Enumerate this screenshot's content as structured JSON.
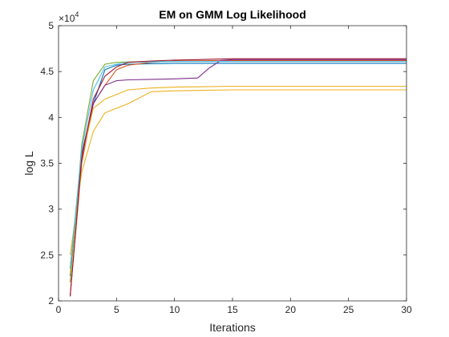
{
  "chart_data": {
    "type": "line",
    "title": "EM on GMM Log Likelihood",
    "xlabel": "Iterations",
    "ylabel": "log L",
    "xlim": [
      0,
      30
    ],
    "ylim": [
      2.0,
      5.0
    ],
    "xticks": [
      "0",
      "5",
      "10",
      "15",
      "20",
      "25",
      "30"
    ],
    "yticks": [
      "2",
      "2.5",
      "3",
      "3.5",
      "4",
      "4.5",
      "5"
    ],
    "y_multiplier_base": "10",
    "y_multiplier_exponent": "4",
    "grid": false,
    "legend": "none",
    "series": [
      {
        "color": "#0072BD",
        "x": [
          1,
          2,
          3,
          4,
          5,
          6,
          8,
          10,
          30
        ],
        "y": [
          2.27,
          3.6,
          4.15,
          4.52,
          4.57,
          4.58,
          4.585,
          4.59,
          4.59
        ]
      },
      {
        "color": "#D95319",
        "x": [
          1,
          2,
          3,
          4,
          5,
          6,
          8,
          10,
          15,
          30
        ],
        "y": [
          2.05,
          3.5,
          4.15,
          4.35,
          4.52,
          4.57,
          4.6,
          4.615,
          4.62,
          4.62
        ]
      },
      {
        "color": "#EDB120",
        "x": [
          1,
          2,
          3,
          4,
          5,
          6,
          8,
          10,
          15,
          30
        ],
        "y": [
          2.5,
          3.4,
          3.85,
          4.05,
          4.1,
          4.15,
          4.28,
          4.29,
          4.3,
          4.3
        ]
      },
      {
        "color": "#EDB120",
        "x": [
          1,
          2,
          3,
          4,
          5,
          6,
          8,
          10,
          15,
          30
        ],
        "y": [
          2.3,
          3.55,
          4.1,
          4.2,
          4.25,
          4.3,
          4.32,
          4.33,
          4.34,
          4.34
        ]
      },
      {
        "color": "#7E2F8E",
        "x": [
          1,
          2,
          3,
          4,
          5,
          6,
          8,
          10,
          12,
          13,
          14,
          15,
          30
        ],
        "y": [
          2.35,
          3.6,
          4.15,
          4.35,
          4.4,
          4.41,
          4.415,
          4.42,
          4.43,
          4.54,
          4.62,
          4.63,
          4.63
        ]
      },
      {
        "color": "#77AC30",
        "x": [
          1,
          2,
          3,
          4,
          5,
          6,
          8,
          10,
          30
        ],
        "y": [
          2.2,
          3.7,
          4.4,
          4.58,
          4.6,
          4.605,
          4.61,
          4.61,
          4.61
        ]
      },
      {
        "color": "#4DBEEE",
        "x": [
          1,
          2,
          3,
          4,
          5,
          6,
          8,
          10,
          30
        ],
        "y": [
          2.35,
          3.65,
          4.3,
          4.55,
          4.58,
          4.6,
          4.605,
          4.61,
          4.61
        ]
      },
      {
        "color": "#A2142F",
        "x": [
          1,
          2,
          3,
          4,
          5,
          6,
          8,
          10,
          12,
          15,
          30
        ],
        "y": [
          2.05,
          3.55,
          4.2,
          4.45,
          4.55,
          4.6,
          4.615,
          4.625,
          4.63,
          4.64,
          4.64
        ]
      }
    ]
  }
}
